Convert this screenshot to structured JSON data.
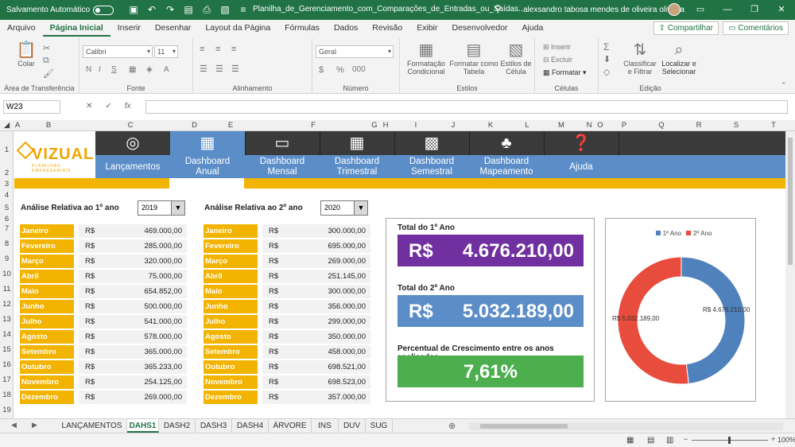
{
  "titlebar": {
    "autosave_label": "Salvamento Automático",
    "doc_title": "Planilha_de_Gerenciamento_com_Comparações_de_Entradas_ou_Saídas...",
    "user": "alexsandro tabosa mendes de oliveira oliveira"
  },
  "ribbon_tabs": [
    "Arquivo",
    "Página Inicial",
    "Inserir",
    "Desenhar",
    "Layout da Página",
    "Fórmulas",
    "Dados",
    "Revisão",
    "Exibir",
    "Desenvolvedor",
    "Ajuda"
  ],
  "share_label": "Compartilhar",
  "comments_label": "Comentários",
  "ribbon": {
    "paste_label": "Colar",
    "clipboard_label": "Área de Transferência",
    "font_name": "Calibri",
    "font_size": "11",
    "font_label": "Fonte",
    "bold": "N",
    "italic": "I",
    "underline": "S",
    "alignment_label": "Alinhamento",
    "number_format": "Geral",
    "number_label": "Número",
    "cond_format_label": "Formatação Condicional",
    "format_table_label": "Formatar como Tabela",
    "cell_styles_label": "Estilos de Célula",
    "styles_label": "Estilos",
    "insert_label": "Inserir",
    "delete_label": "Excluir",
    "format_label": "Formatar",
    "cells_label": "Células",
    "sort_label": "Classificar e Filtrar",
    "find_label": "Localizar e Selecionar",
    "editing_label": "Edição"
  },
  "formula_bar": {
    "cell_ref": "W23",
    "fx": "fx"
  },
  "columns": [
    "A",
    "B",
    "C",
    "D",
    "E",
    "F",
    "G",
    "H",
    "I",
    "J",
    "K",
    "L",
    "M",
    "N",
    "O",
    "P",
    "Q",
    "R",
    "S",
    "T"
  ],
  "rows": [
    "1",
    "2",
    "3",
    "4",
    "5",
    "6",
    "7",
    "8",
    "9",
    "10",
    "11",
    "12",
    "13",
    "14",
    "15",
    "16",
    "17",
    "18",
    "19"
  ],
  "logo": {
    "name": "VIZUAL",
    "tagline": "PLANILHAS EMPRESARIAIS"
  },
  "nav": [
    {
      "label": "Lançamentos",
      "icon": "target-icon"
    },
    {
      "label": "Dashboard Anual",
      "icon": "calculator-icon"
    },
    {
      "label": "Dashboard Mensal",
      "icon": "calendar-icon"
    },
    {
      "label": "Dashboard Trimestral",
      "icon": "calendar-grid-icon"
    },
    {
      "label": "Dashboard Semestral",
      "icon": "calendar-month-icon"
    },
    {
      "label": "Dashboard Mapeamento",
      "icon": "tree-icon"
    },
    {
      "label": "Ajuda",
      "icon": "help-icon"
    }
  ],
  "year1": {
    "label": "Análise Relativa ao 1º ano",
    "year": "2019",
    "currency": "R$",
    "months": [
      {
        "month": "Janeiro",
        "value": "469.000,00"
      },
      {
        "month": "Fevereiro",
        "value": "285.000,00"
      },
      {
        "month": "Março",
        "value": "320.000,00"
      },
      {
        "month": "Abril",
        "value": "75.000,00"
      },
      {
        "month": "Maio",
        "value": "654.852,00"
      },
      {
        "month": "Junho",
        "value": "500.000,00"
      },
      {
        "month": "Julho",
        "value": "541.000,00"
      },
      {
        "month": "Agosto",
        "value": "578.000,00"
      },
      {
        "month": "Setembro",
        "value": "365.000,00"
      },
      {
        "month": "Outubro",
        "value": "365.233,00"
      },
      {
        "month": "Novembro",
        "value": "254.125,00"
      },
      {
        "month": "Dezembro",
        "value": "269.000,00"
      }
    ]
  },
  "year2": {
    "label": "Análise Relativa ao 2º ano",
    "year": "2020",
    "currency": "R$",
    "months": [
      {
        "month": "Janeiro",
        "value": "300.000,00"
      },
      {
        "month": "Fevereiro",
        "value": "695.000,00"
      },
      {
        "month": "Março",
        "value": "269.000,00"
      },
      {
        "month": "Abril",
        "value": "251.145,00"
      },
      {
        "month": "Maio",
        "value": "300.000,00"
      },
      {
        "month": "Junho",
        "value": "356.000,00"
      },
      {
        "month": "Julho",
        "value": "299.000,00"
      },
      {
        "month": "Agosto",
        "value": "350.000,00"
      },
      {
        "month": "Setembro",
        "value": "458.000,00"
      },
      {
        "month": "Outubro",
        "value": "698.521,00"
      },
      {
        "month": "Novembro",
        "value": "698.523,00"
      },
      {
        "month": "Dezembro",
        "value": "357.000,00"
      }
    ]
  },
  "kpis": {
    "total1_title": "Total do 1º Ano",
    "total1_currency": "R$",
    "total1_value": "4.676.210,00",
    "total2_title": "Total do 2º Ano",
    "total2_currency": "R$",
    "total2_value": "5.032.189,00",
    "growth_title": "Percentual de Crescimento entre os anos analisados",
    "growth_value": "7,61%",
    "colors": {
      "total1": "#7030a0",
      "total2": "#5b8ec9",
      "growth": "#4cae4c"
    }
  },
  "chart_data": {
    "type": "pie",
    "donut": true,
    "legend_position": "top",
    "series": [
      {
        "name": "1º Ano",
        "value": 4676210,
        "label": "R$ 4.676.210,00",
        "color": "#4f81bd"
      },
      {
        "name": "2º Ano",
        "value": 5032189,
        "label": "R$ 5.032.189,00",
        "color": "#e84c3d"
      }
    ]
  },
  "sheet_tabs": [
    "LANÇAMENTOS",
    "DAHS1",
    "DASH2",
    "DASH3",
    "DASH4",
    "ÁRVORE",
    "INS",
    "DUV",
    "SUG"
  ],
  "active_tab": "DAHS1",
  "status": {
    "zoom": "100%"
  }
}
